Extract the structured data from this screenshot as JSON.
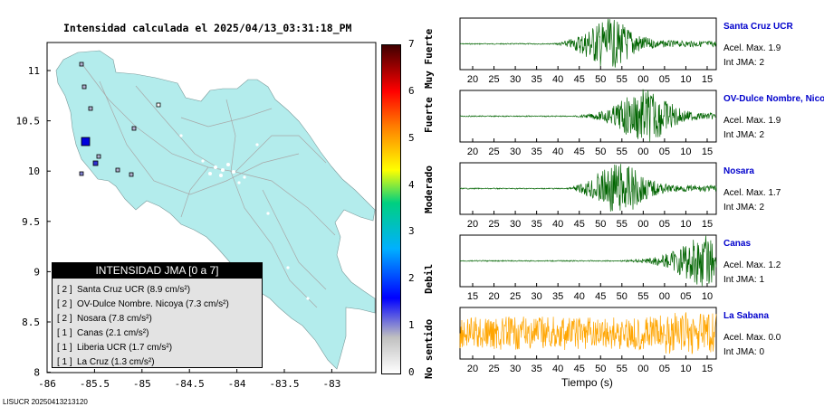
{
  "map": {
    "title": "Intensidad calculada el 2025/04/13_03:31:18_PM",
    "x_ticks": [
      "-86",
      "-85.5",
      "-85",
      "-84.5",
      "-84",
      "-83.5",
      "-83"
    ],
    "y_ticks": [
      "11",
      "10.5",
      "10",
      "9.5",
      "9",
      "8.5",
      "8"
    ],
    "footer_id": "LISUCR 20250413213120",
    "colors": {
      "land": "#b3ecec",
      "ocean": "#ffffff",
      "roads": "#a8a8a8",
      "station_border": "#000000"
    }
  },
  "legend": {
    "title": "INTENSIDAD JMA [0 a 7]",
    "entries": [
      {
        "level": "[ 2 ]",
        "text": "Santa Cruz UCR (8.9 cm/s²)"
      },
      {
        "level": "[ 2 ]",
        "text": "OV-Dulce Nombre. Nicoya (7.3 cm/s²)"
      },
      {
        "level": "[ 2 ]",
        "text": "Nosara (7.8 cm/s²)"
      },
      {
        "level": "[ 1 ]",
        "text": "Canas (2.1 cm/s²)"
      },
      {
        "level": "[ 1 ]",
        "text": "Liberia UCR (1.7 cm/s²)"
      },
      {
        "level": "[ 1 ]",
        "text": "La Cruz (1.3 cm/s²)"
      }
    ]
  },
  "colorbar": {
    "ticks": [
      "0",
      "1",
      "2",
      "3",
      "4",
      "5",
      "6",
      "7"
    ],
    "labels": [
      "No sentido",
      "Debil",
      "Moderado",
      "Fuerte",
      "Muy Fuerte"
    ],
    "range": [
      0,
      7
    ]
  },
  "stations": [
    {
      "name": "Santa Cruz UCR",
      "accel": "Acel. Max. 1.9",
      "int": "Int JMA: 2",
      "trace_color": "#006400",
      "ticks": [
        "20",
        "25",
        "30",
        "35",
        "40",
        "45",
        "50",
        "55",
        "00",
        "05",
        "10",
        "15"
      ],
      "onset": 0.36,
      "peak": 0.58,
      "amp": 0.85
    },
    {
      "name": "OV-Dulce Nombre, Nicoya",
      "accel": "Acel. Max. 1.9",
      "int": "Int JMA: 2",
      "trace_color": "#006400",
      "ticks": [
        "20",
        "25",
        "30",
        "35",
        "40",
        "45",
        "50",
        "55",
        "00",
        "05",
        "10",
        "15"
      ],
      "onset": 0.42,
      "peak": 0.72,
      "amp": 0.95
    },
    {
      "name": "Nosara",
      "accel": "Acel. Max. 1.7",
      "int": "Int JMA: 2",
      "trace_color": "#006400",
      "ticks": [
        "20",
        "25",
        "30",
        "35",
        "40",
        "45",
        "50",
        "55",
        "00",
        "05",
        "10",
        "15"
      ],
      "onset": 0.42,
      "peak": 0.62,
      "amp": 0.9
    },
    {
      "name": "Canas",
      "accel": "Acel. Max. 1.2",
      "int": "Int JMA: 1",
      "trace_color": "#006400",
      "ticks": [
        "15",
        "20",
        "25",
        "30",
        "35",
        "40",
        "45",
        "50",
        "55",
        "00",
        "05",
        "10"
      ],
      "onset": 0.6,
      "peak": 0.95,
      "amp": 0.9
    },
    {
      "name": "La Sabana",
      "accel": "Acel. Max. 0.0",
      "int": "Int JMA: 0",
      "trace_color": "#ffa500",
      "ticks": [
        "20",
        "25",
        "30",
        "35",
        "40",
        "45",
        "50",
        "55",
        "00",
        "05",
        "10",
        "15"
      ],
      "onset": 0.0,
      "peak": 0.9,
      "amp": 0.75
    }
  ],
  "x_axis_title": "Tiempo (s)"
}
